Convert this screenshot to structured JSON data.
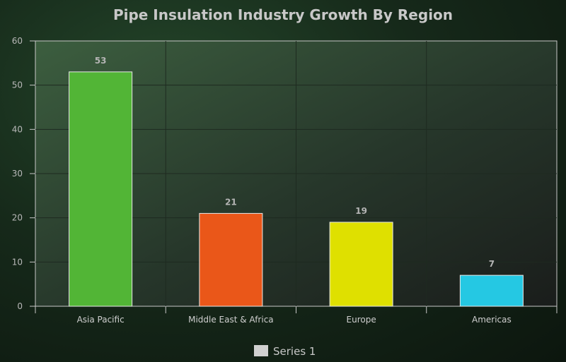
{
  "chart_data": {
    "type": "bar",
    "title": "Pipe Insulation Industry Growth By Region",
    "categories": [
      "Asia Pacific",
      "Middle East & Africa",
      "Europe",
      "Americas"
    ],
    "series": [
      {
        "name": "Series 1",
        "values": [
          53,
          21,
          19,
          7
        ]
      }
    ],
    "bar_colors": [
      "#52b536",
      "#ea5719",
      "#dfe000",
      "#25c8e3"
    ],
    "ylim": [
      0,
      60
    ],
    "yticks": [
      0,
      10,
      20,
      30,
      40,
      50,
      60
    ],
    "grid": true,
    "legend_position": "bottom-center",
    "data_labels": true
  }
}
